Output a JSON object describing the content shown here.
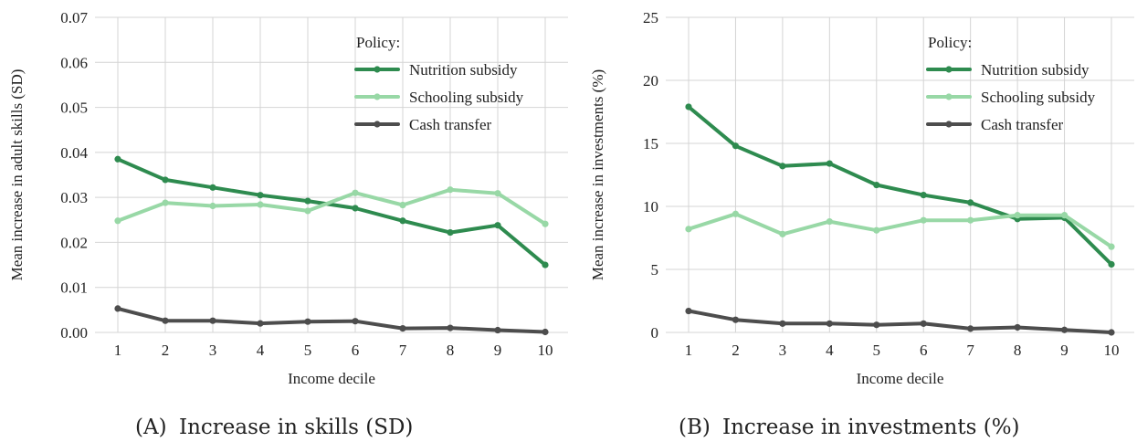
{
  "chart_data": [
    {
      "type": "line",
      "xlabel": "Income decile",
      "ylabel": "Mean increase in adult skills (SD)",
      "ylim": [
        0,
        0.07
      ],
      "yticks": [
        "0.00",
        "0.01",
        "0.02",
        "0.03",
        "0.04",
        "0.05",
        "0.06",
        "0.07"
      ],
      "x": [
        1,
        2,
        3,
        4,
        5,
        6,
        7,
        8,
        9,
        10
      ],
      "legend_title": "Policy:",
      "legend_position": "top-right",
      "grid": true,
      "caption_label": "(A)",
      "caption_text": "Increase in skills (SD)",
      "series": [
        {
          "name": "Nutrition subsidy",
          "color": "#2e8b4f",
          "values": [
            0.0385,
            0.0339,
            0.0322,
            0.0305,
            0.0292,
            0.0276,
            0.0248,
            0.0222,
            0.0238,
            0.015
          ]
        },
        {
          "name": "Schooling subsidy",
          "color": "#98d8a6",
          "values": [
            0.0248,
            0.0288,
            0.0281,
            0.0284,
            0.027,
            0.031,
            0.0283,
            0.0317,
            0.0309,
            0.0241
          ]
        },
        {
          "name": "Cash transfer",
          "color": "#4d4d4d",
          "values": [
            0.0053,
            0.0026,
            0.0026,
            0.002,
            0.0024,
            0.0025,
            0.0009,
            0.001,
            0.0005,
            0.0001
          ]
        }
      ]
    },
    {
      "type": "line",
      "xlabel": "Income decile",
      "ylabel": "Mean increase in investments (%)",
      "ylim": [
        0,
        25
      ],
      "yticks": [
        "0",
        "5",
        "10",
        "15",
        "20",
        "25"
      ],
      "x": [
        1,
        2,
        3,
        4,
        5,
        6,
        7,
        8,
        9,
        10
      ],
      "legend_title": "Policy:",
      "legend_position": "top-right",
      "grid": true,
      "caption_label": "(B)",
      "caption_text": "Increase in investments (%)",
      "series": [
        {
          "name": "Nutrition subsidy",
          "color": "#2e8b4f",
          "values": [
            17.9,
            14.8,
            13.2,
            13.4,
            11.7,
            10.9,
            10.3,
            9.0,
            9.1,
            5.4
          ]
        },
        {
          "name": "Schooling subsidy",
          "color": "#98d8a6",
          "values": [
            8.2,
            9.4,
            7.8,
            8.8,
            8.1,
            8.9,
            8.9,
            9.3,
            9.3,
            6.8
          ]
        },
        {
          "name": "Cash transfer",
          "color": "#4d4d4d",
          "values": [
            1.7,
            1.0,
            0.7,
            0.7,
            0.6,
            0.7,
            0.3,
            0.4,
            0.2,
            0.0
          ]
        }
      ]
    }
  ]
}
